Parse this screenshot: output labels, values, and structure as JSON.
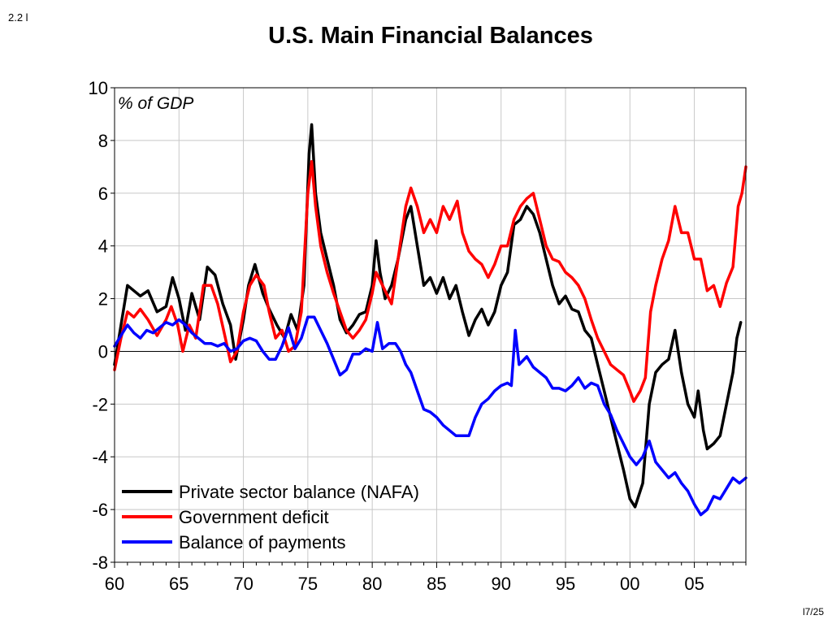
{
  "slide_label": "2.2 l",
  "page_label": "l7/25",
  "chart_data": {
    "type": "line",
    "title": "U.S. Main Financial Balances",
    "annotation": "% of GDP",
    "xlabel": "",
    "ylabel": "",
    "xlim": [
      1960,
      2009
    ],
    "ylim": [
      -8,
      10
    ],
    "grid": true,
    "legend_position": "bottom-left",
    "x_ticks": [
      1960,
      1965,
      1970,
      1975,
      1980,
      1985,
      1990,
      1995,
      2000,
      2005
    ],
    "x_tick_labels": [
      "60",
      "65",
      "70",
      "75",
      "80",
      "85",
      "90",
      "95",
      "00",
      "05"
    ],
    "y_ticks": [
      -8,
      -6,
      -4,
      -2,
      0,
      2,
      4,
      6,
      8,
      10
    ],
    "y_tick_labels": [
      "-8",
      "-6",
      "-4",
      "-2",
      "0",
      "2",
      "4",
      "6",
      "8",
      "10"
    ],
    "series": [
      {
        "name": "Private sector balance (NAFA)",
        "color": "#000000",
        "points": [
          [
            1960,
            -0.5
          ],
          [
            1961,
            2.5
          ],
          [
            1962,
            2.1
          ],
          [
            1962.6,
            2.3
          ],
          [
            1963.3,
            1.5
          ],
          [
            1964,
            1.7
          ],
          [
            1964.5,
            2.8
          ],
          [
            1965,
            2.0
          ],
          [
            1965.5,
            0.8
          ],
          [
            1966,
            2.2
          ],
          [
            1966.6,
            1.2
          ],
          [
            1967.2,
            3.2
          ],
          [
            1967.8,
            2.9
          ],
          [
            1968.4,
            1.8
          ],
          [
            1969,
            1.0
          ],
          [
            1969.4,
            -0.3
          ],
          [
            1970,
            1.2
          ],
          [
            1970.4,
            2.5
          ],
          [
            1970.9,
            3.3
          ],
          [
            1971.5,
            2.2
          ],
          [
            1972,
            1.6
          ],
          [
            1972.6,
            1.0
          ],
          [
            1973.2,
            0.5
          ],
          [
            1973.7,
            1.4
          ],
          [
            1974.2,
            0.8
          ],
          [
            1974.7,
            2.5
          ],
          [
            1975.1,
            7.5
          ],
          [
            1975.3,
            8.6
          ],
          [
            1975.6,
            6.0
          ],
          [
            1976,
            4.5
          ],
          [
            1976.5,
            3.5
          ],
          [
            1977,
            2.5
          ],
          [
            1977.5,
            1.2
          ],
          [
            1978,
            0.7
          ],
          [
            1978.5,
            1.0
          ],
          [
            1979,
            1.4
          ],
          [
            1979.5,
            1.5
          ],
          [
            1980,
            2.5
          ],
          [
            1980.3,
            4.2
          ],
          [
            1980.6,
            3.0
          ],
          [
            1981,
            2.0
          ],
          [
            1981.5,
            2.5
          ],
          [
            1982,
            3.5
          ],
          [
            1982.6,
            5.0
          ],
          [
            1983,
            5.5
          ],
          [
            1983.5,
            4.0
          ],
          [
            1984,
            2.5
          ],
          [
            1984.5,
            2.8
          ],
          [
            1985,
            2.2
          ],
          [
            1985.5,
            2.8
          ],
          [
            1986,
            2.0
          ],
          [
            1986.5,
            2.5
          ],
          [
            1987,
            1.5
          ],
          [
            1987.5,
            0.6
          ],
          [
            1988,
            1.2
          ],
          [
            1988.5,
            1.6
          ],
          [
            1989,
            1.0
          ],
          [
            1989.5,
            1.5
          ],
          [
            1990,
            2.5
          ],
          [
            1990.5,
            3.0
          ],
          [
            1991,
            4.8
          ],
          [
            1991.5,
            5.0
          ],
          [
            1992,
            5.5
          ],
          [
            1992.5,
            5.2
          ],
          [
            1993,
            4.5
          ],
          [
            1993.5,
            3.5
          ],
          [
            1994,
            2.5
          ],
          [
            1994.5,
            1.8
          ],
          [
            1995,
            2.1
          ],
          [
            1995.5,
            1.6
          ],
          [
            1996,
            1.5
          ],
          [
            1996.5,
            0.8
          ],
          [
            1997,
            0.5
          ],
          [
            1997.5,
            -0.5
          ],
          [
            1998,
            -1.5
          ],
          [
            1998.5,
            -2.5
          ],
          [
            1999,
            -3.5
          ],
          [
            1999.5,
            -4.5
          ],
          [
            2000,
            -5.6
          ],
          [
            2000.4,
            -5.9
          ],
          [
            2001,
            -5.0
          ],
          [
            2001.5,
            -2.0
          ],
          [
            2002,
            -0.8
          ],
          [
            2002.5,
            -0.5
          ],
          [
            2003,
            -0.3
          ],
          [
            2003.5,
            0.8
          ],
          [
            2004,
            -0.8
          ],
          [
            2004.5,
            -2.0
          ],
          [
            2005,
            -2.5
          ],
          [
            2005.3,
            -1.5
          ],
          [
            2005.7,
            -3.0
          ],
          [
            2006,
            -3.7
          ],
          [
            2006.5,
            -3.5
          ],
          [
            2007,
            -3.2
          ],
          [
            2007.5,
            -2.0
          ],
          [
            2008,
            -0.8
          ],
          [
            2008.3,
            0.5
          ],
          [
            2008.6,
            1.1
          ]
        ]
      },
      {
        "name": "Government deficit",
        "color": "#ff0000",
        "points": [
          [
            1960,
            -0.7
          ],
          [
            1960.5,
            0.5
          ],
          [
            1961,
            1.5
          ],
          [
            1961.5,
            1.3
          ],
          [
            1962,
            1.6
          ],
          [
            1962.6,
            1.2
          ],
          [
            1963.3,
            0.6
          ],
          [
            1964,
            1.2
          ],
          [
            1964.4,
            1.7
          ],
          [
            1964.9,
            1.0
          ],
          [
            1965.3,
            0.0
          ],
          [
            1965.8,
            1.0
          ],
          [
            1966.3,
            0.5
          ],
          [
            1966.9,
            2.5
          ],
          [
            1967.5,
            2.5
          ],
          [
            1968,
            1.8
          ],
          [
            1968.6,
            0.5
          ],
          [
            1969,
            -0.4
          ],
          [
            1969.5,
            0.0
          ],
          [
            1970,
            1.5
          ],
          [
            1970.5,
            2.5
          ],
          [
            1971,
            2.9
          ],
          [
            1971.6,
            2.5
          ],
          [
            1972,
            1.5
          ],
          [
            1972.5,
            0.5
          ],
          [
            1973,
            0.8
          ],
          [
            1973.5,
            0.0
          ],
          [
            1974,
            0.2
          ],
          [
            1974.5,
            1.5
          ],
          [
            1975,
            6.0
          ],
          [
            1975.3,
            7.2
          ],
          [
            1975.6,
            5.5
          ],
          [
            1976,
            4.0
          ],
          [
            1976.5,
            3.0
          ],
          [
            1977,
            2.2
          ],
          [
            1977.5,
            1.5
          ],
          [
            1978,
            0.8
          ],
          [
            1978.5,
            0.5
          ],
          [
            1979,
            0.8
          ],
          [
            1979.5,
            1.2
          ],
          [
            1980,
            2.2
          ],
          [
            1980.3,
            3.0
          ],
          [
            1980.8,
            2.5
          ],
          [
            1981.5,
            1.8
          ],
          [
            1982,
            3.5
          ],
          [
            1982.6,
            5.5
          ],
          [
            1983,
            6.2
          ],
          [
            1983.5,
            5.5
          ],
          [
            1984,
            4.5
          ],
          [
            1984.5,
            5.0
          ],
          [
            1985,
            4.5
          ],
          [
            1985.5,
            5.5
          ],
          [
            1986,
            5.0
          ],
          [
            1986.6,
            5.7
          ],
          [
            1987,
            4.5
          ],
          [
            1987.5,
            3.8
          ],
          [
            1988,
            3.5
          ],
          [
            1988.5,
            3.3
          ],
          [
            1989,
            2.8
          ],
          [
            1989.5,
            3.3
          ],
          [
            1990,
            4.0
          ],
          [
            1990.5,
            4.0
          ],
          [
            1991,
            5.0
          ],
          [
            1991.5,
            5.5
          ],
          [
            1992,
            5.8
          ],
          [
            1992.5,
            6.0
          ],
          [
            1993,
            5.0
          ],
          [
            1993.5,
            4.0
          ],
          [
            1994,
            3.5
          ],
          [
            1994.5,
            3.4
          ],
          [
            1995,
            3.0
          ],
          [
            1995.5,
            2.8
          ],
          [
            1996,
            2.5
          ],
          [
            1996.5,
            2.0
          ],
          [
            1997,
            1.2
          ],
          [
            1997.5,
            0.5
          ],
          [
            1998,
            0.0
          ],
          [
            1998.5,
            -0.5
          ],
          [
            1999,
            -0.7
          ],
          [
            1999.5,
            -0.9
          ],
          [
            2000,
            -1.5
          ],
          [
            2000.3,
            -1.9
          ],
          [
            2000.8,
            -1.5
          ],
          [
            2001.2,
            -1.0
          ],
          [
            2001.6,
            1.5
          ],
          [
            2002,
            2.5
          ],
          [
            2002.5,
            3.5
          ],
          [
            2003,
            4.2
          ],
          [
            2003.5,
            5.5
          ],
          [
            2004,
            4.5
          ],
          [
            2004.5,
            4.5
          ],
          [
            2005,
            3.5
          ],
          [
            2005.5,
            3.5
          ],
          [
            2006,
            2.3
          ],
          [
            2006.5,
            2.5
          ],
          [
            2007,
            1.7
          ],
          [
            2007.5,
            2.6
          ],
          [
            2008,
            3.2
          ],
          [
            2008.4,
            5.5
          ],
          [
            2008.7,
            6.0
          ],
          [
            2009,
            7.0
          ]
        ]
      },
      {
        "name": "Balance of payments",
        "color": "#0000ff",
        "points": [
          [
            1960,
            0.2
          ],
          [
            1960.5,
            0.6
          ],
          [
            1961,
            1.0
          ],
          [
            1961.5,
            0.7
          ],
          [
            1962,
            0.5
          ],
          [
            1962.5,
            0.8
          ],
          [
            1963,
            0.7
          ],
          [
            1963.5,
            0.9
          ],
          [
            1964,
            1.1
          ],
          [
            1964.5,
            1.0
          ],
          [
            1965,
            1.2
          ],
          [
            1965.5,
            1.0
          ],
          [
            1966,
            0.7
          ],
          [
            1966.5,
            0.5
          ],
          [
            1967,
            0.3
          ],
          [
            1967.5,
            0.3
          ],
          [
            1968,
            0.2
          ],
          [
            1968.5,
            0.3
          ],
          [
            1969,
            0.0
          ],
          [
            1969.5,
            0.1
          ],
          [
            1970,
            0.4
          ],
          [
            1970.5,
            0.5
          ],
          [
            1971,
            0.4
          ],
          [
            1971.5,
            0.0
          ],
          [
            1972,
            -0.3
          ],
          [
            1972.5,
            -0.3
          ],
          [
            1973,
            0.2
          ],
          [
            1973.5,
            0.9
          ],
          [
            1974,
            0.1
          ],
          [
            1974.5,
            0.5
          ],
          [
            1975,
            1.3
          ],
          [
            1975.5,
            1.3
          ],
          [
            1976,
            0.8
          ],
          [
            1976.5,
            0.3
          ],
          [
            1977,
            -0.3
          ],
          [
            1977.5,
            -0.9
          ],
          [
            1978,
            -0.7
          ],
          [
            1978.5,
            -0.1
          ],
          [
            1979,
            -0.1
          ],
          [
            1979.5,
            0.1
          ],
          [
            1980,
            0.0
          ],
          [
            1980.4,
            1.1
          ],
          [
            1980.8,
            0.1
          ],
          [
            1981.3,
            0.3
          ],
          [
            1981.8,
            0.3
          ],
          [
            1982.2,
            0.0
          ],
          [
            1982.6,
            -0.5
          ],
          [
            1983,
            -0.8
          ],
          [
            1983.5,
            -1.5
          ],
          [
            1984,
            -2.2
          ],
          [
            1984.5,
            -2.3
          ],
          [
            1985,
            -2.5
          ],
          [
            1985.5,
            -2.8
          ],
          [
            1986,
            -3.0
          ],
          [
            1986.5,
            -3.2
          ],
          [
            1987,
            -3.2
          ],
          [
            1987.5,
            -3.2
          ],
          [
            1988,
            -2.5
          ],
          [
            1988.5,
            -2.0
          ],
          [
            1989,
            -1.8
          ],
          [
            1989.5,
            -1.5
          ],
          [
            1990,
            -1.3
          ],
          [
            1990.5,
            -1.2
          ],
          [
            1990.8,
            -1.3
          ],
          [
            1991.1,
            0.8
          ],
          [
            1991.4,
            -0.5
          ],
          [
            1992,
            -0.2
          ],
          [
            1992.5,
            -0.6
          ],
          [
            1993,
            -0.8
          ],
          [
            1993.5,
            -1.0
          ],
          [
            1994,
            -1.4
          ],
          [
            1994.5,
            -1.4
          ],
          [
            1995,
            -1.5
          ],
          [
            1995.5,
            -1.3
          ],
          [
            1996,
            -1.0
          ],
          [
            1996.5,
            -1.4
          ],
          [
            1997,
            -1.2
          ],
          [
            1997.5,
            -1.3
          ],
          [
            1998,
            -2.0
          ],
          [
            1998.5,
            -2.4
          ],
          [
            1999,
            -3.0
          ],
          [
            1999.5,
            -3.5
          ],
          [
            2000,
            -4.0
          ],
          [
            2000.5,
            -4.3
          ],
          [
            2001,
            -4.0
          ],
          [
            2001.5,
            -3.4
          ],
          [
            2002,
            -4.2
          ],
          [
            2002.5,
            -4.5
          ],
          [
            2003,
            -4.8
          ],
          [
            2003.5,
            -4.6
          ],
          [
            2004,
            -5.0
          ],
          [
            2004.5,
            -5.3
          ],
          [
            2005,
            -5.8
          ],
          [
            2005.5,
            -6.2
          ],
          [
            2006,
            -6.0
          ],
          [
            2006.5,
            -5.5
          ],
          [
            2007,
            -5.6
          ],
          [
            2007.5,
            -5.2
          ],
          [
            2008,
            -4.8
          ],
          [
            2008.5,
            -5.0
          ],
          [
            2009,
            -4.8
          ]
        ]
      }
    ]
  }
}
